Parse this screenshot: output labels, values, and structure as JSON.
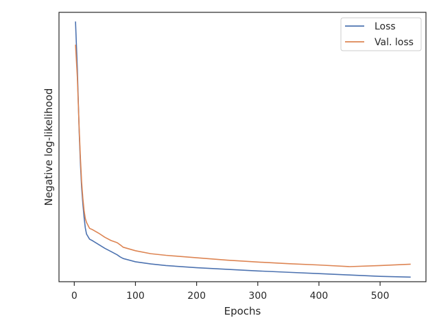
{
  "chart_data": {
    "type": "line",
    "title": "",
    "xlabel": "Epochs",
    "ylabel": "Negative log-likelihood",
    "xlim": [
      -25,
      575
    ],
    "ylim": [
      0.0,
      1.0
    ],
    "xticks": [
      0,
      100,
      200,
      300,
      400,
      500
    ],
    "yticks_visible": false,
    "grid": false,
    "legend_position": "top-right",
    "series": [
      {
        "name": "Loss",
        "color": "#4c72b0",
        "x": [
          2,
          5,
          8,
          10,
          12,
          14,
          16,
          18,
          20,
          25,
          30,
          40,
          50,
          60,
          70,
          75,
          80,
          100,
          125,
          150,
          200,
          250,
          300,
          350,
          400,
          450,
          500,
          550
        ],
        "y": [
          0.966,
          0.79,
          0.56,
          0.44,
          0.35,
          0.29,
          0.24,
          0.2,
          0.177,
          0.158,
          0.152,
          0.138,
          0.124,
          0.112,
          0.1,
          0.092,
          0.086,
          0.074,
          0.066,
          0.06,
          0.052,
          0.046,
          0.04,
          0.035,
          0.03,
          0.025,
          0.02,
          0.017
        ]
      },
      {
        "name": "Val. loss",
        "color": "#dd8452",
        "x": [
          2,
          5,
          8,
          10,
          12,
          14,
          16,
          18,
          20,
          25,
          30,
          40,
          50,
          60,
          70,
          75,
          80,
          100,
          125,
          150,
          200,
          250,
          300,
          350,
          400,
          450,
          500,
          550
        ],
        "y": [
          0.88,
          0.76,
          0.57,
          0.46,
          0.37,
          0.31,
          0.265,
          0.235,
          0.22,
          0.198,
          0.193,
          0.18,
          0.165,
          0.153,
          0.145,
          0.137,
          0.128,
          0.115,
          0.104,
          0.098,
          0.089,
          0.08,
          0.073,
          0.067,
          0.062,
          0.056,
          0.06,
          0.065
        ]
      }
    ]
  }
}
